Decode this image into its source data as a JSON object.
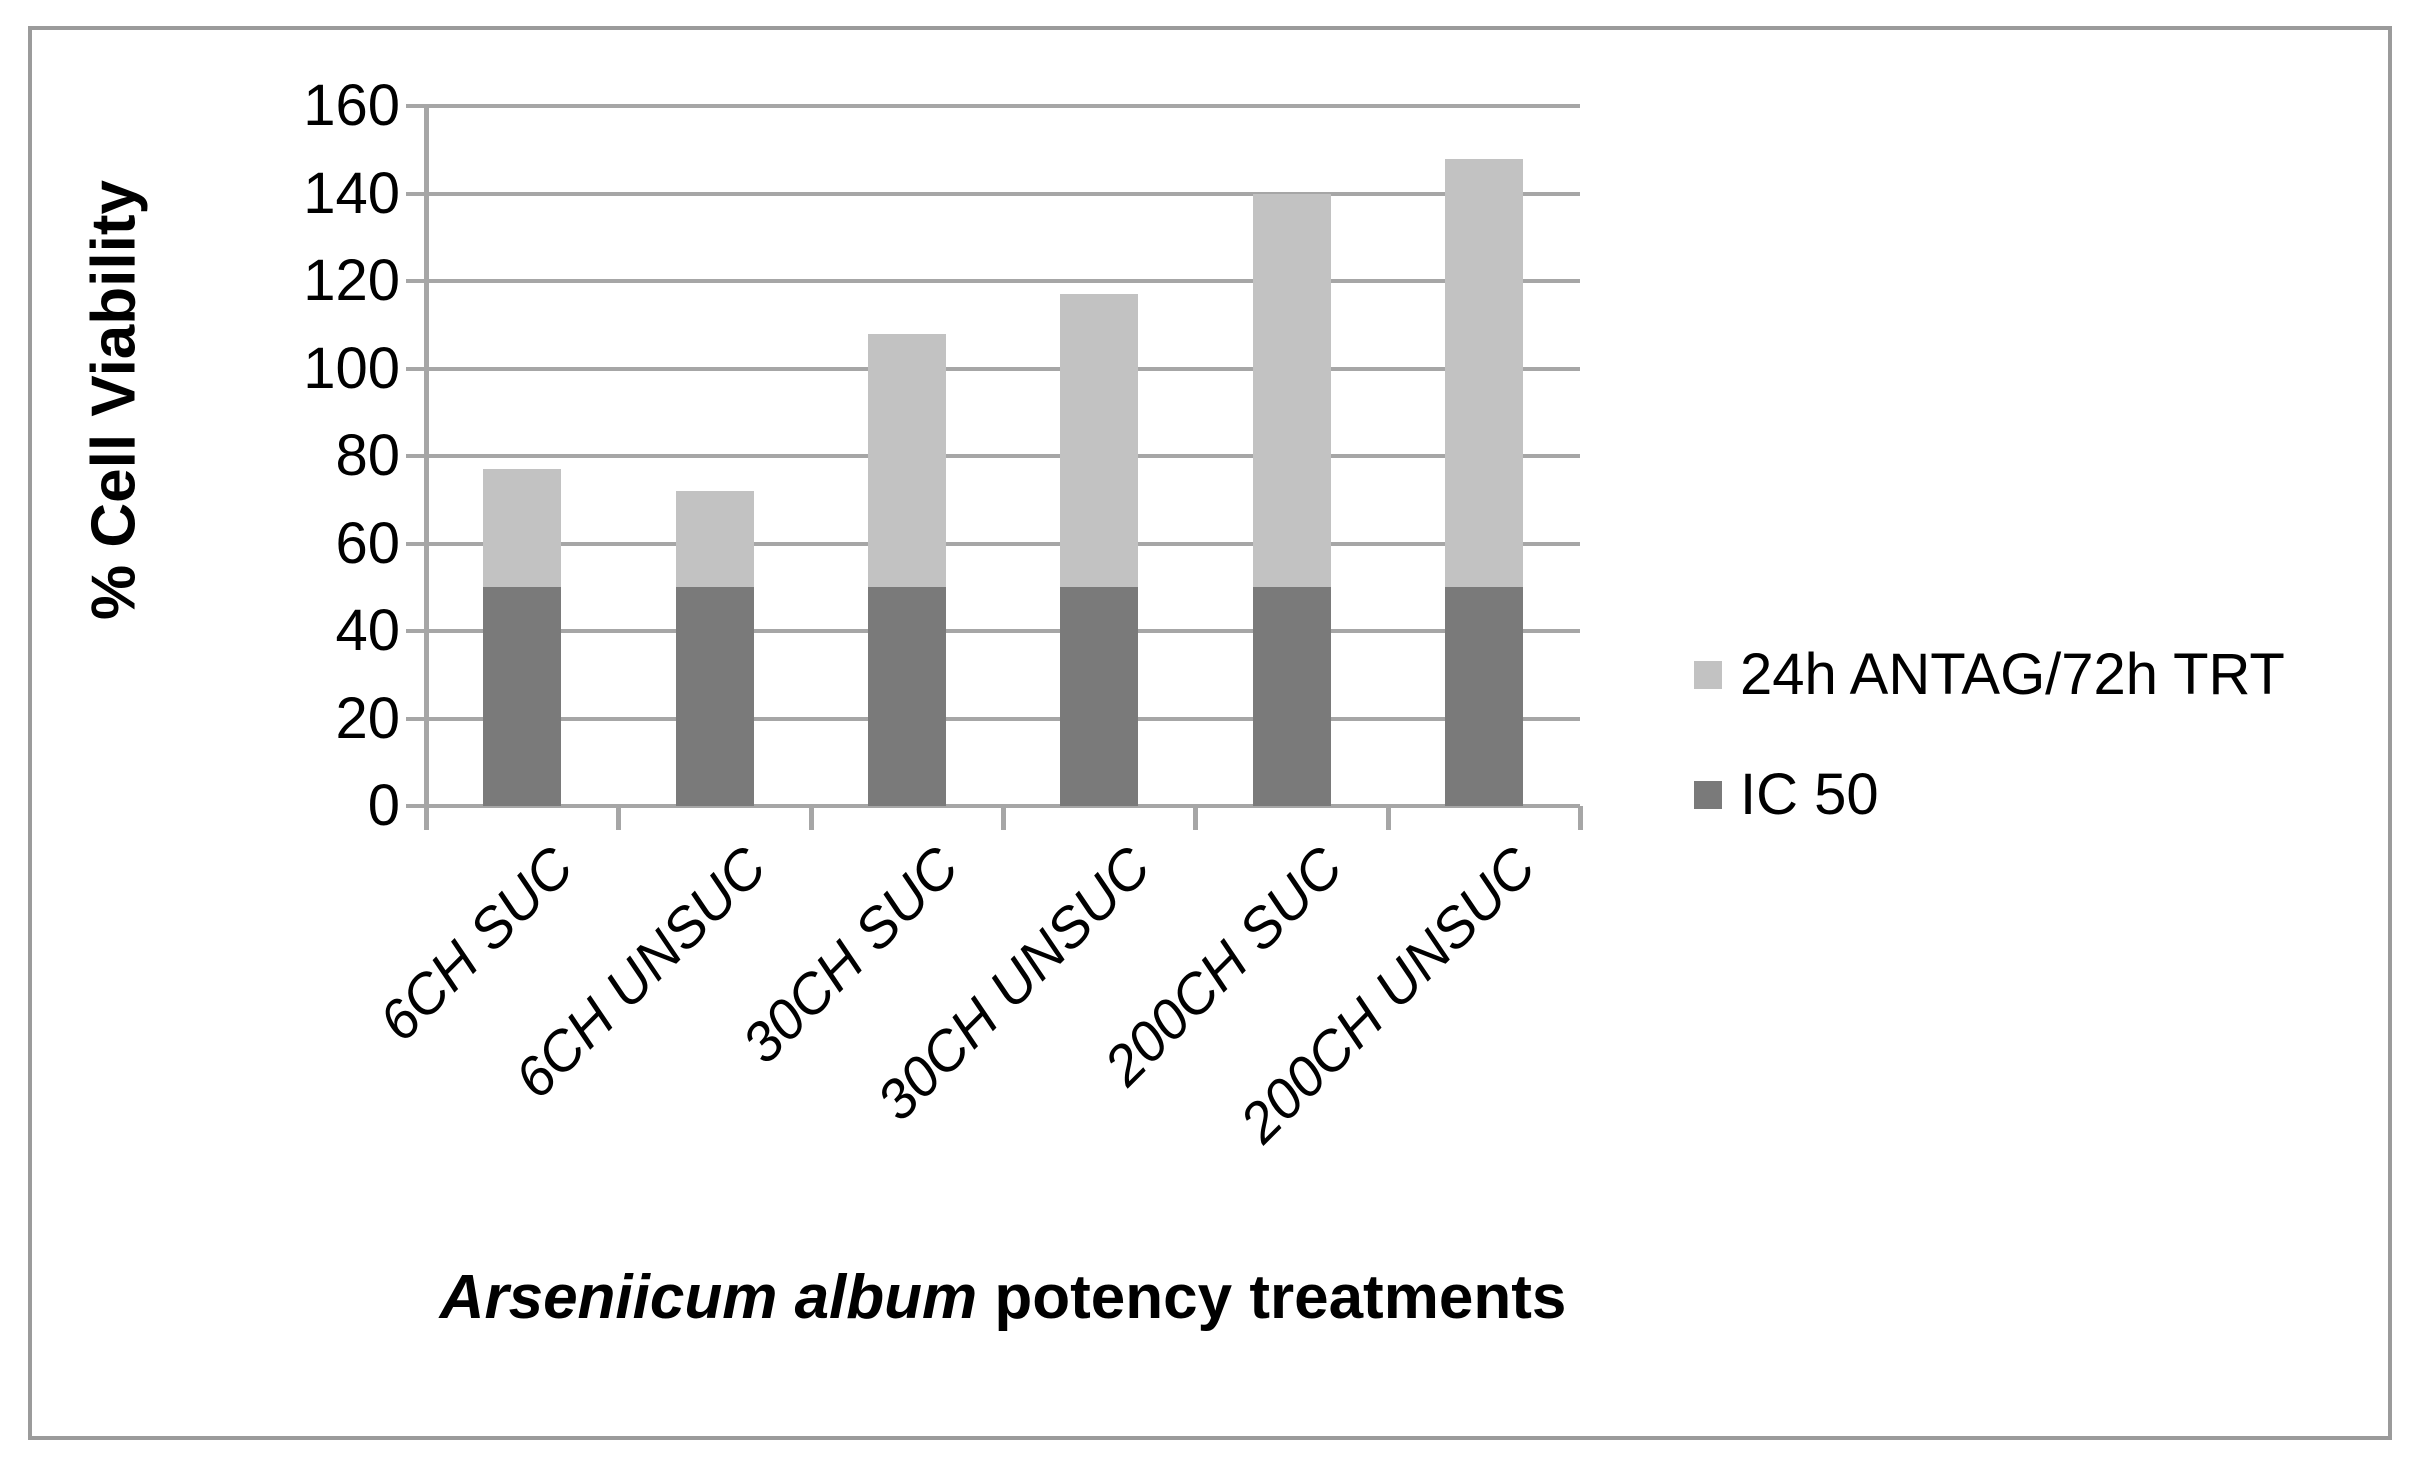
{
  "chart_data": {
    "type": "bar",
    "stacked": true,
    "title": "",
    "xlabel": "Arseniicum album potency treatments",
    "xlabel_italic_part": "Arseniicum album",
    "xlabel_regular_part": " potency treatments",
    "ylabel": "% Cell Viability",
    "ylim": [
      0,
      160
    ],
    "yticks": [
      0,
      20,
      40,
      60,
      80,
      100,
      120,
      140,
      160
    ],
    "grid": true,
    "legend_position": "right",
    "categories": [
      "6CH SUC",
      "6CH UNSUC",
      "30CH SUC",
      "30CH UNSUC",
      "200CH SUC",
      "200CH UNSUC"
    ],
    "series": [
      {
        "name": "IC 50",
        "color": "#7a7a7a",
        "values": [
          50,
          50,
          50,
          50,
          50,
          50
        ]
      },
      {
        "name": "24h ANTAG/72h TRT",
        "color": "#c2c2c2",
        "values": [
          27,
          22,
          58,
          67,
          90,
          98
        ]
      }
    ],
    "stack_totals": [
      77,
      72,
      108,
      117,
      140,
      148
    ]
  },
  "colors": {
    "gridline": "#a6a6a6",
    "axis": "#a6a6a6",
    "frame_border": "#9b9b9b",
    "text": "#000000",
    "background": "#ffffff"
  }
}
